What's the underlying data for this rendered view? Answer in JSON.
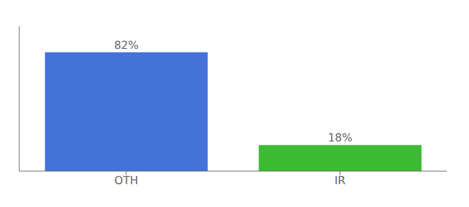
{
  "chart_data": {
    "type": "bar",
    "categories": [
      "OTH",
      "IR"
    ],
    "values": [
      82,
      18
    ],
    "value_labels": [
      "82%",
      "18%"
    ],
    "colors": [
      "#4472d9",
      "#3dbb35"
    ],
    "ylim": [
      0,
      100
    ],
    "data_labels": true,
    "tick_labels": "x",
    "grid": false
  }
}
